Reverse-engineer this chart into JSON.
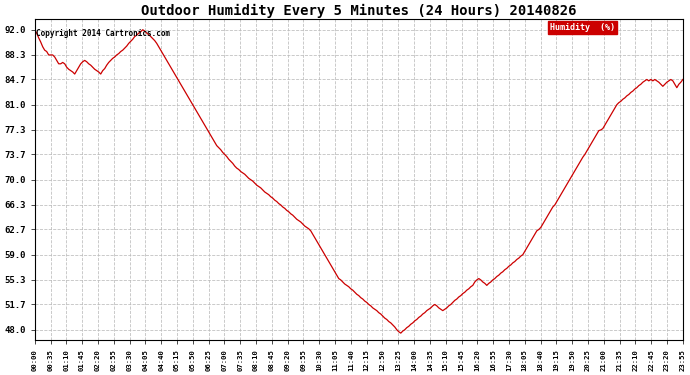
{
  "title": "Outdoor Humidity Every 5 Minutes (24 Hours) 20140826",
  "copyright": "Copyright 2014 Cartronics.com",
  "legend_label": "Humidity  (%)",
  "line_color": "#cc0000",
  "background_color": "#ffffff",
  "plot_bg_color": "#ffffff",
  "grid_color": "#bbbbbb",
  "yticks": [
    48.0,
    51.7,
    55.3,
    59.0,
    62.7,
    66.3,
    70.0,
    73.7,
    77.3,
    81.0,
    84.7,
    88.3,
    92.0
  ],
  "ylim": [
    46.5,
    93.5
  ],
  "xtick_labels": [
    "00:00",
    "00:35",
    "01:10",
    "01:45",
    "02:20",
    "02:55",
    "03:30",
    "04:05",
    "04:40",
    "05:15",
    "05:50",
    "06:25",
    "07:00",
    "07:35",
    "08:10",
    "08:45",
    "09:20",
    "09:55",
    "10:30",
    "11:05",
    "11:40",
    "12:15",
    "12:50",
    "13:25",
    "14:00",
    "14:35",
    "15:10",
    "15:45",
    "16:20",
    "16:55",
    "17:30",
    "18:05",
    "18:40",
    "19:15",
    "19:50",
    "20:25",
    "21:00",
    "21:35",
    "22:10",
    "22:45",
    "23:20",
    "23:55"
  ],
  "humidity_data": [
    92.0,
    91.5,
    90.8,
    90.2,
    89.5,
    89.0,
    88.8,
    88.3,
    88.3,
    88.3,
    88.0,
    87.5,
    87.0,
    87.0,
    87.2,
    87.0,
    86.5,
    86.2,
    86.0,
    85.8,
    85.5,
    86.0,
    86.5,
    87.0,
    87.3,
    87.5,
    87.3,
    87.0,
    86.8,
    86.5,
    86.2,
    86.0,
    85.8,
    85.5,
    86.0,
    86.3,
    86.8,
    87.2,
    87.5,
    87.8,
    88.0,
    88.3,
    88.5,
    88.8,
    89.0,
    89.3,
    89.6,
    90.0,
    90.3,
    90.6,
    91.0,
    91.2,
    91.5,
    91.7,
    92.0,
    91.8,
    91.5,
    91.3,
    91.0,
    90.7,
    90.4,
    90.0,
    89.5,
    89.0,
    88.5,
    88.0,
    87.5,
    87.0,
    86.5,
    86.0,
    85.5,
    85.0,
    84.5,
    84.0,
    83.5,
    83.0,
    82.5,
    82.0,
    81.5,
    81.0,
    80.5,
    80.0,
    79.5,
    79.0,
    78.5,
    78.0,
    77.5,
    77.0,
    76.5,
    76.0,
    75.5,
    75.0,
    74.7,
    74.4,
    74.0,
    73.7,
    73.4,
    73.0,
    72.7,
    72.4,
    72.0,
    71.7,
    71.5,
    71.2,
    71.0,
    70.8,
    70.5,
    70.2,
    70.0,
    69.8,
    69.5,
    69.2,
    69.0,
    68.8,
    68.5,
    68.2,
    68.0,
    67.8,
    67.5,
    67.3,
    67.0,
    66.8,
    66.5,
    66.3,
    66.0,
    65.8,
    65.5,
    65.3,
    65.0,
    64.8,
    64.5,
    64.2,
    64.0,
    63.8,
    63.5,
    63.2,
    63.0,
    62.8,
    62.5,
    62.0,
    61.5,
    61.0,
    60.5,
    60.0,
    59.5,
    59.0,
    58.5,
    58.0,
    57.5,
    57.0,
    56.5,
    56.0,
    55.5,
    55.3,
    55.0,
    54.7,
    54.5,
    54.3,
    54.0,
    53.8,
    53.5,
    53.2,
    53.0,
    52.7,
    52.5,
    52.2,
    52.0,
    51.7,
    51.5,
    51.2,
    51.0,
    50.8,
    50.5,
    50.3,
    50.0,
    49.7,
    49.5,
    49.2,
    49.0,
    48.7,
    48.4,
    48.0,
    47.7,
    47.5,
    47.8,
    48.0,
    48.3,
    48.5,
    48.8,
    49.0,
    49.3,
    49.5,
    49.8,
    50.0,
    50.3,
    50.5,
    50.8,
    51.0,
    51.2,
    51.5,
    51.7,
    51.5,
    51.2,
    51.0,
    50.8,
    51.0,
    51.2,
    51.5,
    51.7,
    52.0,
    52.3,
    52.5,
    52.8,
    53.0,
    53.3,
    53.5,
    53.8,
    54.0,
    54.3,
    54.5,
    55.0,
    55.3,
    55.5,
    55.3,
    55.0,
    54.8,
    54.5,
    54.8,
    55.0,
    55.3,
    55.5,
    55.8,
    56.0,
    56.3,
    56.5,
    56.8,
    57.0,
    57.3,
    57.5,
    57.8,
    58.0,
    58.3,
    58.5,
    58.8,
    59.0,
    59.5,
    60.0,
    60.5,
    61.0,
    61.5,
    62.0,
    62.5,
    62.7,
    63.0,
    63.5,
    64.0,
    64.5,
    65.0,
    65.5,
    66.0,
    66.3,
    66.8,
    67.3,
    67.8,
    68.3,
    68.8,
    69.3,
    69.8,
    70.3,
    70.8,
    71.3,
    71.8,
    72.3,
    72.8,
    73.3,
    73.7,
    74.2,
    74.7,
    75.2,
    75.7,
    76.2,
    76.7,
    77.2,
    77.3,
    77.5,
    78.0,
    78.5,
    79.0,
    79.5,
    80.0,
    80.5,
    81.0,
    81.3,
    81.5,
    81.8,
    82.0,
    82.3,
    82.5,
    82.8,
    83.0,
    83.3,
    83.5,
    83.8,
    84.0,
    84.3,
    84.5,
    84.7,
    84.5,
    84.7,
    84.5,
    84.7,
    84.5,
    84.3,
    84.0,
    83.7,
    84.0,
    84.3,
    84.5,
    84.7,
    84.5,
    84.0,
    83.5,
    84.0,
    84.3,
    84.7
  ]
}
